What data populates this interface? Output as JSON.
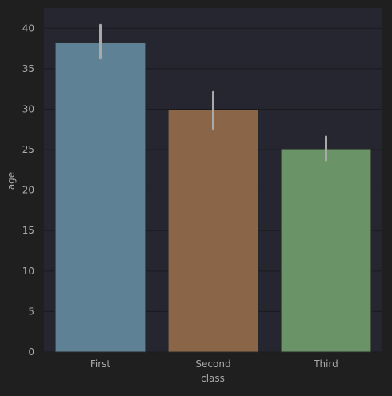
{
  "chart_data": {
    "type": "bar",
    "categories": [
      "First",
      "Second",
      "Third"
    ],
    "series": [
      {
        "values": [
          38.2,
          29.9,
          25.1
        ],
        "error_low": [
          36.3,
          27.6,
          23.7
        ],
        "error_high": [
          40.4,
          32.1,
          26.6
        ],
        "colors": [
          "#5f8196",
          "#8b6548",
          "#6a9468"
        ]
      }
    ],
    "xlabel": "class",
    "ylabel": "age",
    "ylim": [
      0,
      42.5
    ],
    "yticks": [
      0,
      5,
      10,
      15,
      20,
      25,
      30,
      35,
      40
    ],
    "grid": true,
    "legend": "none",
    "colors": {
      "page_background": "#1f1f1f",
      "plot_background": "#252630",
      "grid": "#1a1b1f",
      "text": "#a8a8a8",
      "error_bar": "#a9a9a9"
    }
  }
}
